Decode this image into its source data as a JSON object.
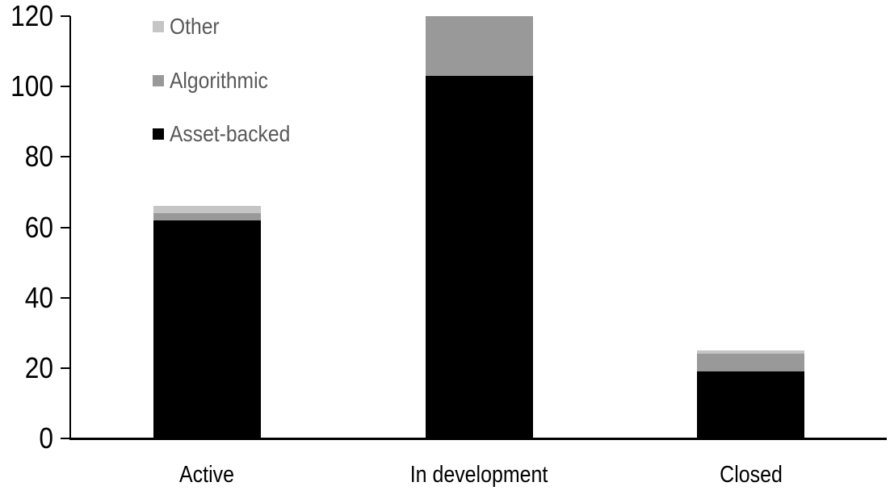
{
  "chart_data": {
    "type": "bar",
    "stacked": true,
    "title": "",
    "xlabel": "",
    "ylabel": "",
    "categories": [
      "Active",
      "In development",
      "Closed"
    ],
    "series": [
      {
        "name": "Asset-backed",
        "color": "#000000",
        "values": [
          62,
          103,
          19
        ]
      },
      {
        "name": "Algorithmic",
        "color": "#999999",
        "values": [
          2,
          17,
          5
        ]
      },
      {
        "name": "Other",
        "color": "#c5c5c5",
        "values": [
          2,
          0,
          1
        ]
      }
    ],
    "totals": [
      66,
      120,
      25
    ],
    "y_ticks": [
      0,
      20,
      40,
      60,
      80,
      100,
      120
    ],
    "ylim": [
      0,
      120
    ],
    "grid": false,
    "legend_position": "top-left",
    "legend_order_top_to_bottom": [
      "Other",
      "Algorithmic",
      "Asset-backed"
    ],
    "axis_color": "#000000",
    "tick_label_color": "#000000",
    "category_label_color": "#000000",
    "legend_text_color": "#595959",
    "background_color": "#ffffff"
  }
}
